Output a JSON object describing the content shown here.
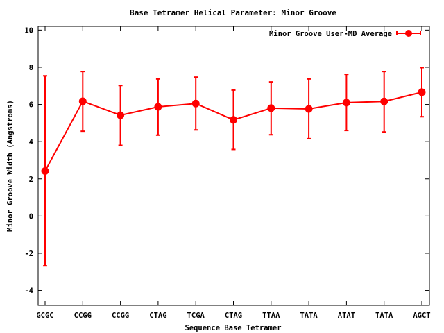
{
  "chart_data": {
    "type": "line",
    "title": "Base Tetramer Helical Parameter: Minor Groove",
    "xlabel": "Sequence Base Tetramer",
    "ylabel": "Minor Groove Width (Angstroms)",
    "categories": [
      "GCGC",
      "CCGG",
      "CCGG",
      "CTAG",
      "TCGA",
      "CTAG",
      "TTAA",
      "TATA",
      "ATAT",
      "TATA",
      "AGCT"
    ],
    "yticks": [
      -4,
      -2,
      0,
      2,
      4,
      6,
      8,
      10
    ],
    "ylim": [
      -4.8,
      10.2
    ],
    "grid": false,
    "legend_position": "top-right",
    "series": [
      {
        "name": "Minor Groove User-MD Average",
        "color": "#ff0000",
        "values": [
          2.42,
          6.17,
          5.42,
          5.87,
          6.05,
          5.17,
          5.8,
          5.76,
          6.1,
          6.16,
          6.66
        ],
        "err_low": [
          -2.68,
          4.56,
          3.8,
          4.35,
          4.63,
          3.58,
          4.37,
          4.16,
          4.6,
          4.52,
          5.34
        ],
        "err_high": [
          7.54,
          7.77,
          7.02,
          7.37,
          7.47,
          6.77,
          7.21,
          7.37,
          7.62,
          7.77,
          7.98
        ]
      }
    ]
  }
}
